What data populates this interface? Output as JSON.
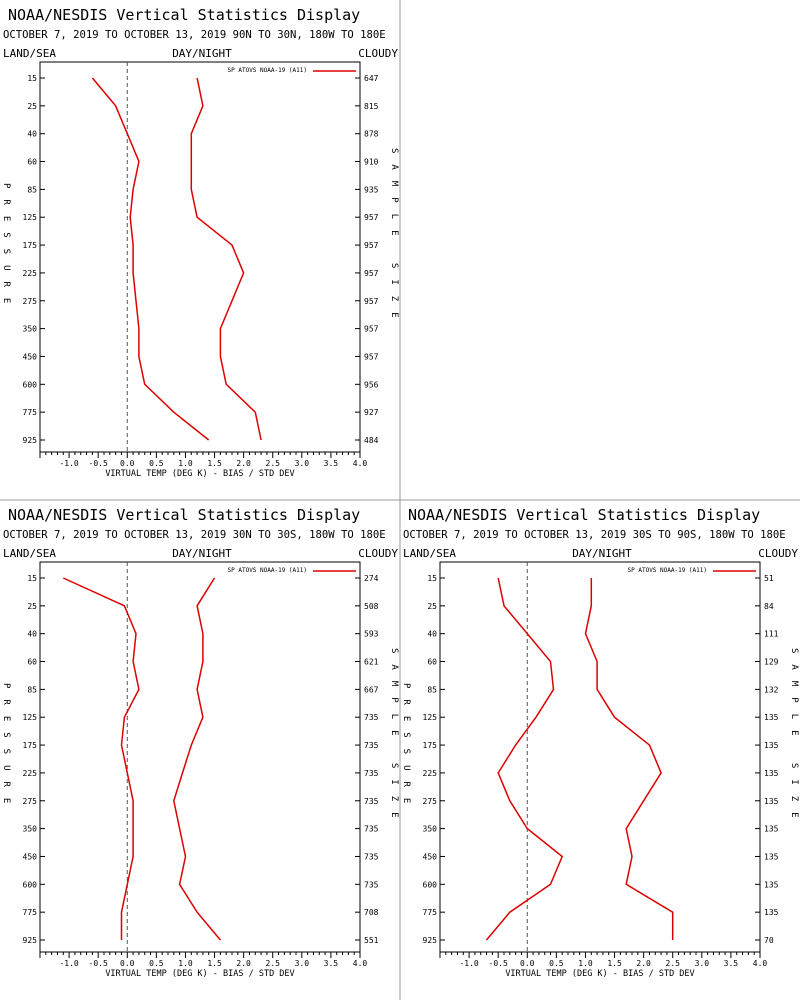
{
  "chart_data": [
    {
      "type": "line",
      "title": "NOAA/NESDIS Vertical Statistics Display",
      "subtitle": "OCTOBER 7, 2019 TO OCTOBER 13, 2019 90N TO 30N, 180W TO 180E",
      "corner_left": "LAND/SEA",
      "corner_center": "DAY/NIGHT",
      "corner_right": "CLOUDY",
      "legend": "SP ATOVS NOAA-19 (A11)",
      "legend_position": "top-right",
      "xlabel": "VIRTUAL TEMP (DEG K) - BIAS / STD DEV",
      "ylabel": "PRESSURE",
      "y2label": "SAMPLE SIZE",
      "xlim": [
        -1.5,
        4.0
      ],
      "xticks": [
        "-1.0",
        "-0.5",
        "0.0",
        "0.5",
        "1.0",
        "1.5",
        "2.0",
        "2.5",
        "3.0",
        "3.5",
        "4.0"
      ],
      "pressure_levels": [
        "15",
        "25",
        "40",
        "60",
        "85",
        "125",
        "175",
        "225",
        "275",
        "350",
        "450",
        "600",
        "775",
        "925"
      ],
      "sample_sizes": [
        "647",
        "815",
        "878",
        "910",
        "935",
        "957",
        "957",
        "957",
        "957",
        "957",
        "957",
        "956",
        "927",
        "484"
      ],
      "series": [
        {
          "values": [
            -0.6,
            -0.2,
            0.0,
            0.2,
            0.1,
            0.05,
            0.1,
            0.1,
            0.15,
            0.2,
            0.2,
            0.3,
            0.8,
            1.4
          ]
        },
        {
          "values": [
            1.2,
            1.3,
            1.1,
            1.1,
            1.1,
            1.2,
            1.8,
            2.0,
            1.8,
            1.6,
            1.6,
            1.7,
            2.2,
            2.3
          ]
        }
      ]
    },
    {
      "type": "line",
      "title": "NOAA/NESDIS Vertical Statistics Display",
      "subtitle": "OCTOBER 7, 2019 TO OCTOBER 13, 2019 30N TO 30S, 180W TO 180E",
      "corner_left": "LAND/SEA",
      "corner_center": "DAY/NIGHT",
      "corner_right": "CLOUDY",
      "legend": "SP ATOVS NOAA-19 (A11)",
      "legend_position": "top-right",
      "xlabel": "VIRTUAL TEMP (DEG K) - BIAS / STD DEV",
      "ylabel": "PRESSURE",
      "y2label": "SAMPLE SIZE",
      "xlim": [
        -1.5,
        4.0
      ],
      "xticks": [
        "-1.0",
        "-0.5",
        "0.0",
        "0.5",
        "1.0",
        "1.5",
        "2.0",
        "2.5",
        "3.0",
        "3.5",
        "4.0"
      ],
      "pressure_levels": [
        "15",
        "25",
        "40",
        "60",
        "85",
        "125",
        "175",
        "225",
        "275",
        "350",
        "450",
        "600",
        "775",
        "925"
      ],
      "sample_sizes": [
        "274",
        "508",
        "593",
        "621",
        "667",
        "735",
        "735",
        "735",
        "735",
        "735",
        "735",
        "735",
        "708",
        "551"
      ],
      "series": [
        {
          "values": [
            -1.1,
            -0.05,
            0.15,
            0.1,
            0.2,
            -0.05,
            -0.1,
            0.0,
            0.1,
            0.1,
            0.1,
            0.0,
            -0.1,
            -0.1
          ]
        },
        {
          "values": [
            1.5,
            1.2,
            1.3,
            1.3,
            1.2,
            1.3,
            1.1,
            0.95,
            0.8,
            0.9,
            1.0,
            0.9,
            1.2,
            1.6
          ]
        }
      ]
    },
    {
      "type": "line",
      "title": "NOAA/NESDIS Vertical Statistics Display",
      "subtitle": "OCTOBER 7, 2019 TO OCTOBER 13, 2019 30S TO 90S, 180W TO 180E",
      "corner_left": "LAND/SEA",
      "corner_center": "DAY/NIGHT",
      "corner_right": "CLOUDY",
      "legend": "SP ATOVS NOAA-19 (A11)",
      "legend_position": "top-right",
      "xlabel": "VIRTUAL TEMP (DEG K) - BIAS / STD DEV",
      "ylabel": "PRESSURE",
      "y2label": "SAMPLE SIZE",
      "xlim": [
        -1.5,
        4.0
      ],
      "xticks": [
        "-1.0",
        "-0.5",
        "0.0",
        "0.5",
        "1.0",
        "1.5",
        "2.0",
        "2.5",
        "3.0",
        "3.5",
        "4.0"
      ],
      "pressure_levels": [
        "15",
        "25",
        "40",
        "60",
        "85",
        "125",
        "175",
        "225",
        "275",
        "350",
        "450",
        "600",
        "775",
        "925"
      ],
      "sample_sizes": [
        "51",
        "84",
        "111",
        "129",
        "132",
        "135",
        "135",
        "135",
        "135",
        "135",
        "135",
        "135",
        "135",
        "70"
      ],
      "series": [
        {
          "values": [
            -0.5,
            -0.4,
            0.0,
            0.4,
            0.45,
            0.15,
            -0.2,
            -0.5,
            -0.3,
            0.0,
            0.6,
            0.4,
            -0.3,
            -0.7
          ]
        },
        {
          "values": [
            1.1,
            1.1,
            1.0,
            1.2,
            1.2,
            1.5,
            2.1,
            2.3,
            2.0,
            1.7,
            1.8,
            1.7,
            2.5,
            2.5
          ]
        }
      ]
    }
  ],
  "colors": {
    "series": "#dd0000",
    "axis": "#000000",
    "zero_line": "#555555",
    "divider": "#999999",
    "background": "#ffffff"
  }
}
